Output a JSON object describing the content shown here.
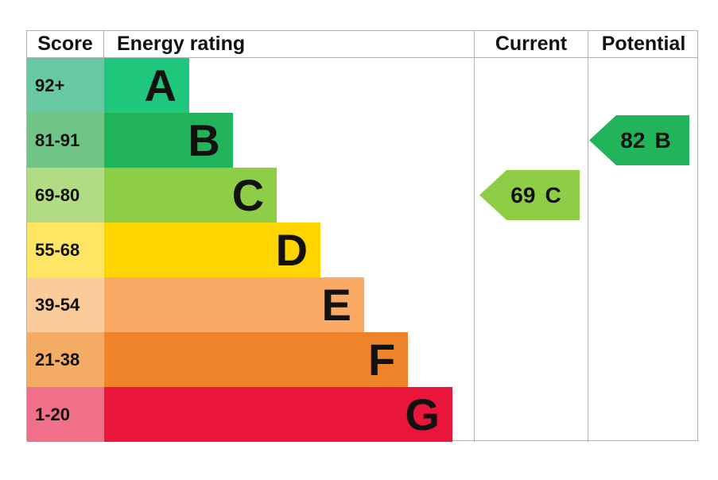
{
  "chart_data": {
    "type": "bar",
    "subtype": "epc-energy-rating-chart",
    "orientation": "horizontal",
    "legend_position": "none",
    "grid": false,
    "headers": {
      "score": "Score",
      "rating": "Energy rating",
      "current": "Current",
      "potential": "Potential"
    },
    "bands": [
      {
        "letter": "A",
        "score": "92+",
        "color": "#1ec77c",
        "score_tint": "#69c9a3",
        "bar_width_pct": 23.0
      },
      {
        "letter": "B",
        "score": "81-91",
        "color": "#22b45a",
        "score_tint": "#70c586",
        "bar_width_pct": 34.8
      },
      {
        "letter": "C",
        "score": "69-80",
        "color": "#8dce46",
        "score_tint": "#b2dc84",
        "bar_width_pct": 46.7
      },
      {
        "letter": "D",
        "score": "55-68",
        "color": "#ffd500",
        "score_tint": "#ffe564",
        "bar_width_pct": 58.5
      },
      {
        "letter": "E",
        "score": "39-54",
        "color": "#fbaa65",
        "score_tint": "#fccb9b",
        "bar_width_pct": 70.3
      },
      {
        "letter": "F",
        "score": "21-38",
        "color": "#ee8329",
        "score_tint": "#f4ab64",
        "bar_width_pct": 82.2
      },
      {
        "letter": "G",
        "score": "1-20",
        "color": "#e9153b",
        "score_tint": "#f17089",
        "bar_width_pct": 94.2
      }
    ],
    "current": {
      "value": "69",
      "band": "C",
      "color": "#8dce46",
      "band_row": "C"
    },
    "potential": {
      "value": "82",
      "band": "B",
      "color": "#22b45a",
      "band_row": "B"
    }
  }
}
